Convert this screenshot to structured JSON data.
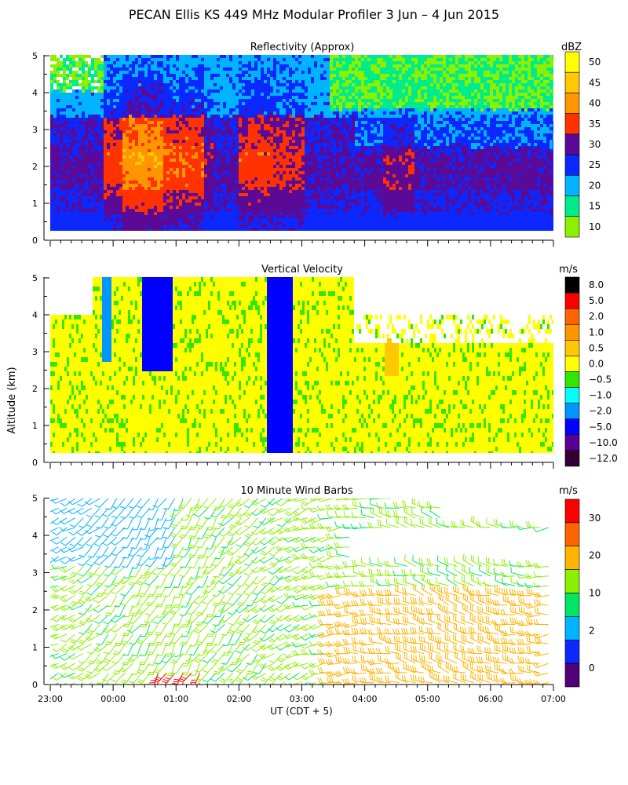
{
  "figure_title": "PECAN Ellis KS 449 MHz Modular Profiler  3 Jun –  4 Jun 2015",
  "shared_axes": {
    "ylabel": "Altitude (km)",
    "xlabel": "UT  (CDT + 5)",
    "x_tick_labels": [
      "23:00",
      "00:00",
      "01:00",
      "02:00",
      "03:00",
      "04:00",
      "05:00",
      "06:00",
      "07:00"
    ],
    "y_tick_labels": [
      "0",
      "1",
      "2",
      "3",
      "4",
      "5"
    ]
  },
  "chart_data": [
    {
      "type": "heatmap",
      "title": "Reflectivity (Approx)",
      "unit": "dBZ",
      "xlim_hours_ut": [
        23,
        31
      ],
      "ylim_km": [
        0,
        5
      ],
      "colorbar": {
        "labels": [
          "50",
          "45",
          "40",
          "35",
          "30",
          "25",
          "20",
          "15",
          "10"
        ],
        "colors_top_to_bottom": [
          "#ffff00",
          "#ffc800",
          "#ff9600",
          "#ff3200",
          "#5a0a96",
          "#0a28ff",
          "#00b4ff",
          "#00eb8c",
          "#8cf000"
        ]
      }
    },
    {
      "type": "heatmap",
      "title": "Vertical Velocity",
      "unit": "m/s",
      "xlim_hours_ut": [
        23,
        31
      ],
      "ylim_km": [
        0,
        5
      ],
      "colorbar": {
        "labels": [
          "8.0",
          "5.0",
          "2.0",
          "1.0",
          "0.5",
          "0.0",
          "−0.5",
          "−1.0",
          "−2.0",
          "−5.0",
          "−10.0",
          "−12.0"
        ],
        "colors_top_to_bottom": [
          "#000000",
          "#ff0000",
          "#ff6400",
          "#ff9600",
          "#ffc800",
          "#ffff00",
          "#32e600",
          "#00ffff",
          "#0096ff",
          "#0000ff",
          "#5a0096",
          "#320032"
        ]
      }
    },
    {
      "type": "wind_barbs",
      "title": "10 Minute Wind Barbs",
      "unit": "m/s",
      "xlim_hours_ut": [
        23,
        31
      ],
      "ylim_km": [
        0,
        5
      ],
      "colorbar": {
        "labels": [
          "30",
          "20",
          "10",
          "2",
          "0"
        ],
        "colors_top_to_bottom": [
          "#ff0000",
          "#ff6400",
          "#ffb400",
          "#8cf000",
          "#00e664",
          "#00b4ff",
          "#0a28ff",
          "#500078"
        ]
      }
    }
  ]
}
